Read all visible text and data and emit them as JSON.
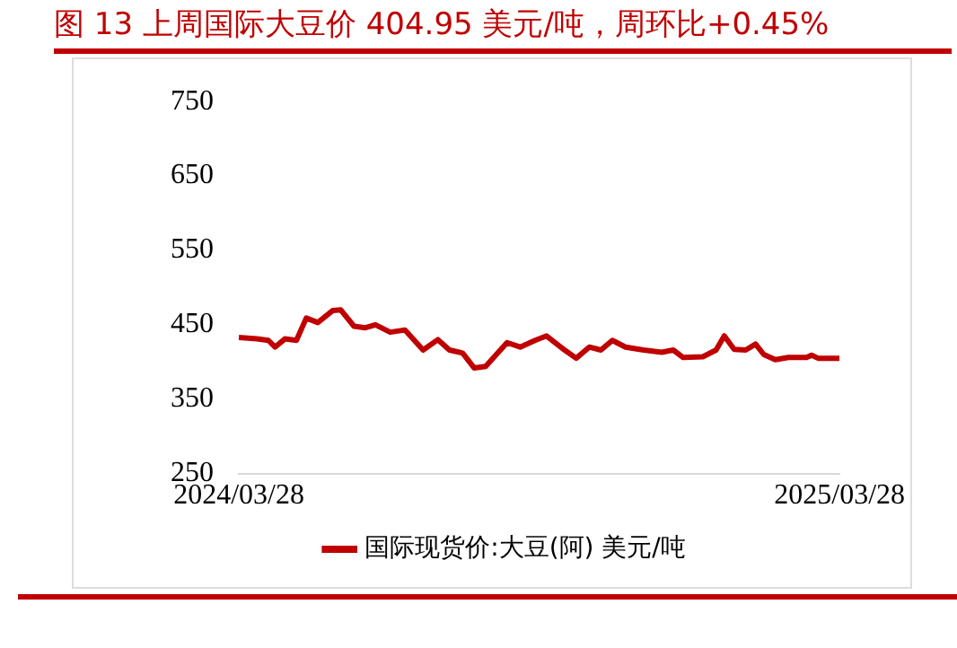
{
  "chart_data": {
    "type": "line",
    "title": "图 13 上周国际大豆价 404.95 美元/吨，周环比+0.45%",
    "x": [
      "2024-03-28",
      "2024-04-08",
      "2024-04-15",
      "2024-04-19",
      "2024-04-25",
      "2024-05-02",
      "2024-05-08",
      "2024-05-15",
      "2024-05-24",
      "2024-05-29",
      "2024-06-06",
      "2024-06-13",
      "2024-06-19",
      "2024-06-28",
      "2024-07-07",
      "2024-07-18",
      "2024-07-27",
      "2024-08-03",
      "2024-08-11",
      "2024-08-18",
      "2024-08-25",
      "2024-09-07",
      "2024-09-15",
      "2024-09-24",
      "2024-10-01",
      "2024-10-12",
      "2024-10-19",
      "2024-10-27",
      "2024-11-03",
      "2024-11-10",
      "2024-11-18",
      "2024-11-29",
      "2024-12-10",
      "2024-12-17",
      "2024-12-23",
      "2025-01-04",
      "2025-01-12",
      "2025-01-17",
      "2025-01-23",
      "2025-01-30",
      "2025-02-05",
      "2025-02-10",
      "2025-02-17",
      "2025-02-25",
      "2025-03-08",
      "2025-03-11",
      "2025-03-15",
      "2025-03-28"
    ],
    "series": [
      {
        "name": "国际现货价:大豆(阿) 美元/吨",
        "color": "#c00000",
        "values": [
          433,
          431,
          429,
          420,
          431,
          429,
          459,
          453,
          469,
          470,
          448,
          446,
          450,
          440,
          443,
          416,
          430,
          416,
          412,
          392,
          394,
          426,
          420,
          429,
          435,
          416,
          405,
          420,
          416,
          429,
          420,
          416,
          413,
          416,
          406,
          407,
          416,
          435,
          417,
          416,
          424,
          410,
          403,
          406,
          406,
          409,
          405,
          404.95
        ]
      }
    ],
    "xlim": [
      "2024-03-28",
      "2025-03-28"
    ],
    "xticks": [
      {
        "value": "2024-03-28",
        "label": "2024/03/28"
      },
      {
        "value": "2025-03-28",
        "label": "2025/03/28"
      }
    ],
    "ylim": [
      250,
      750
    ],
    "yticks": [
      250,
      350,
      450,
      550,
      650,
      750
    ],
    "grid": false,
    "legend": "bottom",
    "marker": "none",
    "line_style": "solid"
  }
}
